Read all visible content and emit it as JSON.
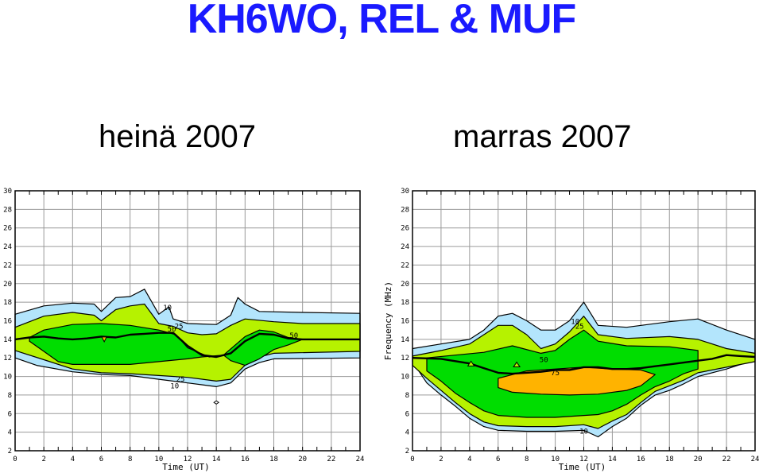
{
  "title": "KH6WO, REL & MUF",
  "subtitles": [
    "heinä 2007",
    "marras 2007"
  ],
  "colors": {
    "level10": "#b3e5fc",
    "level25": "#b6f200",
    "level50": "#00dd00",
    "level75": "#ffb300",
    "muf": "#000000",
    "grid": "#9a9a9a"
  },
  "chart_data": [
    {
      "type": "area",
      "panel": "heinä 2007",
      "xlabel": "Time (UT)",
      "ylabel": "",
      "xlim": [
        0,
        24
      ],
      "ylim": [
        2,
        30
      ],
      "xticks": [
        "0",
        "2",
        "4",
        "6",
        "8",
        "10",
        "12",
        "14",
        "16",
        "18",
        "20",
        "22",
        "24"
      ],
      "yticks": [
        "2",
        "4",
        "6",
        "8",
        "10",
        "12",
        "14",
        "16",
        "18",
        "20",
        "22",
        "24",
        "26",
        "28",
        "30"
      ],
      "contours": [
        {
          "level": "10",
          "top": [
            [
              0,
              16.7
            ],
            [
              2,
              17.6
            ],
            [
              4,
              17.9
            ],
            [
              5.5,
              17.8
            ],
            [
              6,
              17.0
            ],
            [
              7,
              18.5
            ],
            [
              8,
              18.6
            ],
            [
              9,
              19.4
            ],
            [
              10,
              16.7
            ],
            [
              10.7,
              17.5
            ],
            [
              11,
              16.2
            ],
            [
              12,
              15.7
            ],
            [
              14,
              15.6
            ],
            [
              15,
              16.6
            ],
            [
              15.5,
              18.5
            ],
            [
              16,
              17.8
            ],
            [
              17,
              17.0
            ],
            [
              20,
              16.9
            ],
            [
              24,
              16.8
            ]
          ],
          "bottom": [
            [
              0,
              12.0
            ],
            [
              1.5,
              11.2
            ],
            [
              4,
              10.5
            ],
            [
              6,
              10.2
            ],
            [
              8,
              10.1
            ],
            [
              10,
              9.7
            ],
            [
              12,
              9.3
            ],
            [
              14,
              8.9
            ],
            [
              15,
              9.3
            ],
            [
              16,
              10.8
            ],
            [
              17,
              11.5
            ],
            [
              18,
              11.9
            ],
            [
              24,
              12.0
            ]
          ]
        },
        {
          "level": "25",
          "top": [
            [
              0,
              15.3
            ],
            [
              2,
              16.5
            ],
            [
              4,
              16.9
            ],
            [
              5.5,
              16.6
            ],
            [
              6,
              16.0
            ],
            [
              7,
              17.2
            ],
            [
              8,
              17.6
            ],
            [
              9,
              17.8
            ],
            [
              10,
              15.7
            ],
            [
              11,
              15.4
            ],
            [
              12,
              14.7
            ],
            [
              13,
              14.5
            ],
            [
              14,
              14.6
            ],
            [
              15,
              15.5
            ],
            [
              16,
              16.2
            ],
            [
              18,
              15.9
            ],
            [
              20,
              15.7
            ],
            [
              24,
              15.7
            ]
          ],
          "bottom": [
            [
              0,
              12.8
            ],
            [
              2,
              11.8
            ],
            [
              4,
              10.8
            ],
            [
              6,
              10.4
            ],
            [
              8,
              10.3
            ],
            [
              10,
              10.1
            ],
            [
              12,
              9.9
            ],
            [
              14,
              9.5
            ],
            [
              15,
              9.7
            ],
            [
              16,
              11.2
            ],
            [
              17,
              12.1
            ],
            [
              18,
              12.5
            ],
            [
              24,
              12.7
            ]
          ]
        },
        {
          "level": "50",
          "top": [
            [
              1,
              14.2
            ],
            [
              2,
              15.0
            ],
            [
              4,
              15.6
            ],
            [
              6,
              15.7
            ],
            [
              8,
              15.5
            ],
            [
              10,
              15.0
            ],
            [
              11.2,
              14.5
            ],
            [
              12,
              13.1
            ],
            [
              13.5,
              12.1
            ],
            [
              14.5,
              12.3
            ],
            [
              16,
              14.3
            ],
            [
              17,
              15.0
            ],
            [
              18,
              14.8
            ],
            [
              19,
              14.2
            ],
            [
              20,
              14.0
            ]
          ],
          "bottom": [
            [
              1,
              13.8
            ],
            [
              2,
              12.7
            ],
            [
              3,
              11.6
            ],
            [
              4,
              11.3
            ],
            [
              6,
              11.3
            ],
            [
              8,
              11.3
            ],
            [
              10,
              11.6
            ],
            [
              12,
              11.9
            ],
            [
              13,
              12.1
            ],
            [
              14.5,
              12.3
            ],
            [
              15,
              11.7
            ],
            [
              16,
              11.2
            ],
            [
              17,
              11.9
            ],
            [
              18,
              12.9
            ],
            [
              19,
              13.4
            ],
            [
              20,
              14.0
            ]
          ]
        }
      ],
      "muf": [
        [
          0,
          14.0
        ],
        [
          1,
          14.2
        ],
        [
          2,
          14.3
        ],
        [
          3,
          14.1
        ],
        [
          4,
          14.0
        ],
        [
          5,
          14.1
        ],
        [
          6,
          14.3
        ],
        [
          7,
          14.2
        ],
        [
          8,
          14.5
        ],
        [
          9,
          14.6
        ],
        [
          10,
          14.7
        ],
        [
          11,
          14.7
        ],
        [
          12,
          13.3
        ],
        [
          13,
          12.3
        ],
        [
          14,
          12.1
        ],
        [
          15,
          12.5
        ],
        [
          16,
          13.8
        ],
        [
          17,
          14.6
        ],
        [
          18,
          14.5
        ],
        [
          19,
          14.1
        ],
        [
          20,
          14.0
        ],
        [
          22,
          14.0
        ],
        [
          24,
          14.0
        ]
      ],
      "annotations": [
        {
          "text": "10",
          "x": 10.6,
          "y": 17.4
        },
        {
          "text": "25",
          "x": 11.4,
          "y": 15.4
        },
        {
          "text": "50",
          "x": 10.9,
          "y": 15.1
        },
        {
          "text": "50",
          "x": 19.4,
          "y": 14.4
        },
        {
          "text": "25",
          "x": 11.5,
          "y": 9.7
        },
        {
          "text": "10",
          "x": 11.1,
          "y": 9.0
        }
      ]
    },
    {
      "type": "area",
      "panel": "marras 2007",
      "xlabel": "Time (UT)",
      "ylabel": "Frequency (MHz)",
      "xlim": [
        0,
        24
      ],
      "ylim": [
        2,
        30
      ],
      "xticks": [
        "0",
        "2",
        "4",
        "6",
        "8",
        "10",
        "12",
        "14",
        "16",
        "18",
        "20",
        "22",
        "24"
      ],
      "yticks": [
        "2",
        "4",
        "6",
        "8",
        "10",
        "12",
        "14",
        "16",
        "18",
        "20",
        "22",
        "24",
        "26",
        "28",
        "30"
      ],
      "contours": [
        {
          "level": "10",
          "top": [
            [
              0,
              13.0
            ],
            [
              2,
              13.5
            ],
            [
              4,
              14.0
            ],
            [
              5,
              15.0
            ],
            [
              6,
              16.5
            ],
            [
              7,
              16.8
            ],
            [
              8,
              16.0
            ],
            [
              9,
              15.0
            ],
            [
              10,
              15.0
            ],
            [
              11,
              16.0
            ],
            [
              12,
              18.0
            ],
            [
              13,
              15.5
            ],
            [
              15,
              15.3
            ],
            [
              18,
              15.9
            ],
            [
              20,
              16.2
            ],
            [
              22,
              15.0
            ],
            [
              24,
              14.0
            ]
          ],
          "bottom": [
            [
              0,
              11.6
            ],
            [
              1,
              9.3
            ],
            [
              2,
              8.0
            ],
            [
              3,
              6.8
            ],
            [
              4,
              5.5
            ],
            [
              5,
              4.6
            ],
            [
              6,
              4.2
            ],
            [
              8,
              4.1
            ],
            [
              10,
              4.1
            ],
            [
              12,
              4.2
            ],
            [
              13,
              3.5
            ],
            [
              14,
              4.6
            ],
            [
              15,
              5.5
            ],
            [
              16,
              6.9
            ],
            [
              17,
              8.0
            ],
            [
              18,
              8.5
            ],
            [
              19,
              9.2
            ],
            [
              20,
              10.0
            ],
            [
              22,
              10.8
            ],
            [
              24,
              11.8
            ]
          ]
        },
        {
          "level": "25",
          "top": [
            [
              0,
              12.2
            ],
            [
              2,
              12.8
            ],
            [
              4,
              13.5
            ],
            [
              5,
              14.5
            ],
            [
              6,
              15.5
            ],
            [
              7,
              15.5
            ],
            [
              8,
              14.5
            ],
            [
              9,
              13.0
            ],
            [
              10,
              13.5
            ],
            [
              11,
              14.8
            ],
            [
              12,
              16.5
            ],
            [
              13,
              14.5
            ],
            [
              15,
              14.1
            ],
            [
              18,
              14.3
            ],
            [
              20,
              14.0
            ],
            [
              22,
              13.0
            ],
            [
              24,
              12.5
            ]
          ],
          "bottom": [
            [
              0,
              11.2
            ],
            [
              1,
              9.8
            ],
            [
              2,
              8.5
            ],
            [
              3,
              7.2
            ],
            [
              4,
              6.0
            ],
            [
              5,
              5.1
            ],
            [
              6,
              4.7
            ],
            [
              8,
              4.6
            ],
            [
              10,
              4.6
            ],
            [
              12,
              4.8
            ],
            [
              13,
              4.4
            ],
            [
              14,
              5.2
            ],
            [
              15,
              5.9
            ],
            [
              16,
              7.2
            ],
            [
              17,
              8.4
            ],
            [
              18,
              9.0
            ],
            [
              19,
              9.6
            ],
            [
              20,
              10.4
            ],
            [
              22,
              11.0
            ],
            [
              24,
              11.6
            ]
          ]
        },
        {
          "level": "50",
          "top": [
            [
              1,
              12.0
            ],
            [
              3,
              12.3
            ],
            [
              5,
              12.6
            ],
            [
              7,
              13.3
            ],
            [
              9,
              12.5
            ],
            [
              10,
              12.8
            ],
            [
              11,
              14.0
            ],
            [
              12,
              15.0
            ],
            [
              13,
              13.8
            ],
            [
              15,
              13.3
            ],
            [
              18,
              13.2
            ],
            [
              20,
              12.8
            ]
          ],
          "bottom": [
            [
              1,
              10.6
            ],
            [
              2,
              9.5
            ],
            [
              3,
              8.2
            ],
            [
              4,
              7.2
            ],
            [
              5,
              6.3
            ],
            [
              6,
              5.8
            ],
            [
              8,
              5.6
            ],
            [
              10,
              5.6
            ],
            [
              12,
              5.8
            ],
            [
              13,
              5.9
            ],
            [
              14,
              6.3
            ],
            [
              15,
              7.0
            ],
            [
              16,
              8.0
            ],
            [
              17,
              8.9
            ],
            [
              18,
              9.5
            ],
            [
              19,
              10.3
            ],
            [
              20,
              10.8
            ]
          ]
        },
        {
          "level": "75",
          "top": [
            [
              6,
              9.8
            ],
            [
              8,
              10.6
            ],
            [
              10,
              10.8
            ],
            [
              12,
              11.0
            ],
            [
              14,
              10.8
            ],
            [
              16,
              10.7
            ],
            [
              17,
              10.2
            ]
          ],
          "bottom": [
            [
              6,
              8.8
            ],
            [
              7,
              8.3
            ],
            [
              9,
              8.1
            ],
            [
              11,
              8.0
            ],
            [
              13,
              8.1
            ],
            [
              15,
              8.5
            ],
            [
              16,
              9.0
            ],
            [
              17,
              10.2
            ]
          ]
        }
      ],
      "muf": [
        [
          0,
          12.0
        ],
        [
          2,
          11.9
        ],
        [
          4,
          11.4
        ],
        [
          5,
          10.9
        ],
        [
          6,
          10.4
        ],
        [
          7,
          10.3
        ],
        [
          8,
          10.4
        ],
        [
          9,
          10.5
        ],
        [
          10,
          10.7
        ],
        [
          11,
          10.7
        ],
        [
          12,
          11.0
        ],
        [
          13,
          11.0
        ],
        [
          14,
          10.8
        ],
        [
          15,
          10.8
        ],
        [
          16,
          10.9
        ],
        [
          17,
          11.1
        ],
        [
          18,
          11.3
        ],
        [
          19,
          11.5
        ],
        [
          20,
          11.7
        ],
        [
          21,
          11.9
        ],
        [
          22,
          12.3
        ],
        [
          23,
          12.2
        ],
        [
          24,
          12.1
        ]
      ],
      "annotations": [
        {
          "text": "10",
          "x": 11.4,
          "y": 15.9
        },
        {
          "text": "25",
          "x": 11.7,
          "y": 15.4
        },
        {
          "text": "50",
          "x": 9.2,
          "y": 11.8
        },
        {
          "text": "75",
          "x": 10.0,
          "y": 10.4
        },
        {
          "text": "10",
          "x": 12.0,
          "y": 4.1
        }
      ]
    }
  ]
}
